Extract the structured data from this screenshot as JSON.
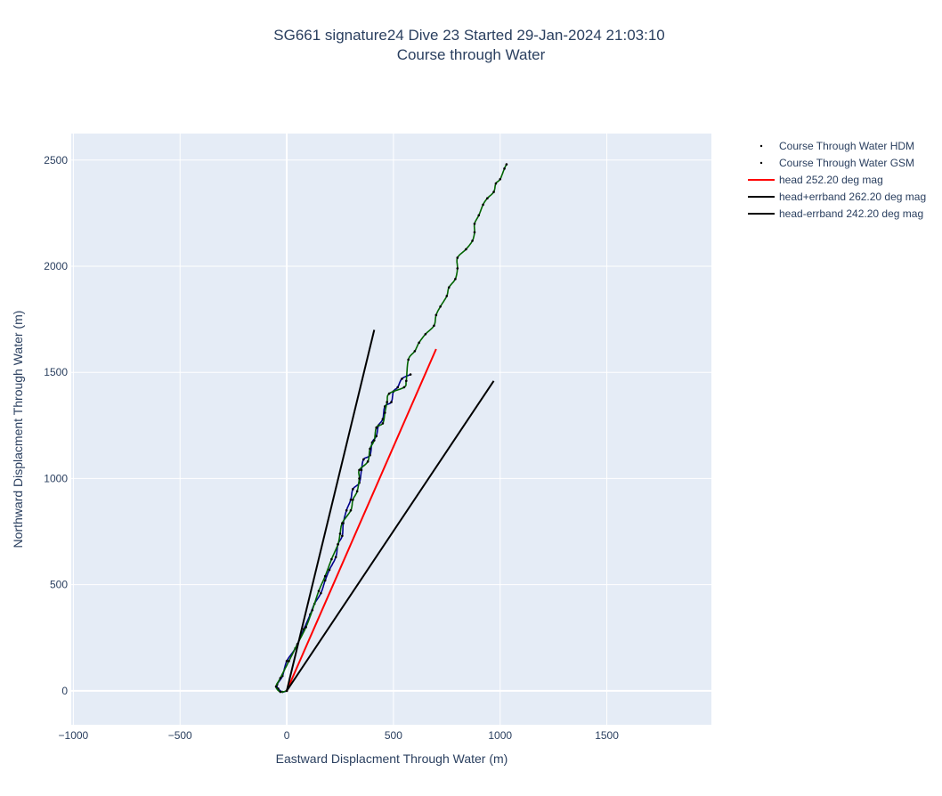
{
  "chart_data": {
    "type": "line",
    "title_line1": "SG661 signature24 Dive 23 Started 29-Jan-2024 21:03:10",
    "title_line2": "Course through Water",
    "xlabel": "Eastward Displacment Through Water (m)",
    "ylabel": "Northward Displacment Through Water (m)",
    "xlim": [
      -1010,
      1990
    ],
    "ylim": [
      -160,
      2625
    ],
    "xticks": [
      -1000,
      -500,
      0,
      500,
      1000,
      1500
    ],
    "yticks": [
      0,
      500,
      1000,
      1500,
      2000,
      2500
    ],
    "xtick_labels": [
      "−1000",
      "−500",
      "0",
      "500",
      "1000",
      "1500"
    ],
    "ytick_labels": [
      "0",
      "500",
      "1000",
      "1500",
      "2000",
      "2500"
    ],
    "grid": true,
    "legend_position": "top-right",
    "colors": {
      "plot_bg": "#e5ecf6",
      "grid": "#ffffff",
      "hdm": "#00008b",
      "gsm": "#006400",
      "head": "#ff0000",
      "errband": "#000000"
    },
    "series": [
      {
        "name": "Course Through Water HDM",
        "color": "#00008b",
        "style": "dots",
        "points": [
          [
            0,
            0
          ],
          [
            -20,
            -5
          ],
          [
            -40,
            10
          ],
          [
            -45,
            30
          ],
          [
            -20,
            70
          ],
          [
            0,
            140
          ],
          [
            40,
            200
          ],
          [
            80,
            290
          ],
          [
            110,
            360
          ],
          [
            130,
            410
          ],
          [
            160,
            460
          ],
          [
            180,
            520
          ],
          [
            200,
            570
          ],
          [
            230,
            630
          ],
          [
            240,
            690
          ],
          [
            260,
            730
          ],
          [
            265,
            790
          ],
          [
            280,
            850
          ],
          [
            300,
            900
          ],
          [
            310,
            950
          ],
          [
            340,
            980
          ],
          [
            350,
            1040
          ],
          [
            360,
            1090
          ],
          [
            390,
            1110
          ],
          [
            400,
            1170
          ],
          [
            420,
            1200
          ],
          [
            430,
            1250
          ],
          [
            450,
            1280
          ],
          [
            460,
            1340
          ],
          [
            490,
            1360
          ],
          [
            500,
            1410
          ],
          [
            520,
            1430
          ],
          [
            540,
            1470
          ],
          [
            580,
            1490
          ]
        ]
      },
      {
        "name": "Course Through Water GSM",
        "color": "#006400",
        "style": "dots",
        "points": [
          [
            0,
            0
          ],
          [
            -30,
            -5
          ],
          [
            -50,
            20
          ],
          [
            -30,
            60
          ],
          [
            10,
            140
          ],
          [
            50,
            220
          ],
          [
            90,
            300
          ],
          [
            120,
            380
          ],
          [
            150,
            470
          ],
          [
            180,
            540
          ],
          [
            210,
            620
          ],
          [
            240,
            690
          ],
          [
            250,
            740
          ],
          [
            260,
            790
          ],
          [
            300,
            850
          ],
          [
            310,
            900
          ],
          [
            330,
            940
          ],
          [
            340,
            1000
          ],
          [
            340,
            1040
          ],
          [
            380,
            1080
          ],
          [
            390,
            1140
          ],
          [
            410,
            1180
          ],
          [
            420,
            1240
          ],
          [
            450,
            1260
          ],
          [
            460,
            1310
          ],
          [
            470,
            1360
          ],
          [
            480,
            1400
          ],
          [
            550,
            1430
          ],
          [
            560,
            1460
          ],
          [
            570,
            1560
          ],
          [
            600,
            1600
          ],
          [
            620,
            1640
          ],
          [
            650,
            1680
          ],
          [
            690,
            1720
          ],
          [
            700,
            1770
          ],
          [
            720,
            1810
          ],
          [
            750,
            1860
          ],
          [
            760,
            1900
          ],
          [
            790,
            1940
          ],
          [
            800,
            1990
          ],
          [
            800,
            2040
          ],
          [
            840,
            2080
          ],
          [
            870,
            2120
          ],
          [
            880,
            2160
          ],
          [
            880,
            2200
          ],
          [
            900,
            2240
          ],
          [
            920,
            2290
          ],
          [
            940,
            2320
          ],
          [
            970,
            2350
          ],
          [
            980,
            2390
          ],
          [
            1000,
            2410
          ],
          [
            1020,
            2460
          ],
          [
            1030,
            2480
          ]
        ]
      },
      {
        "name": "head 252.20 deg mag",
        "color": "#ff0000",
        "style": "line",
        "points": [
          [
            0,
            0
          ],
          [
            700,
            1610
          ]
        ]
      },
      {
        "name": "head+errband 262.20 deg mag",
        "color": "#000000",
        "style": "line",
        "points": [
          [
            0,
            0
          ],
          [
            410,
            1700
          ]
        ]
      },
      {
        "name": "head-errband 242.20 deg mag",
        "color": "#000000",
        "style": "line",
        "points": [
          [
            0,
            0
          ],
          [
            970,
            1460
          ]
        ]
      }
    ]
  }
}
